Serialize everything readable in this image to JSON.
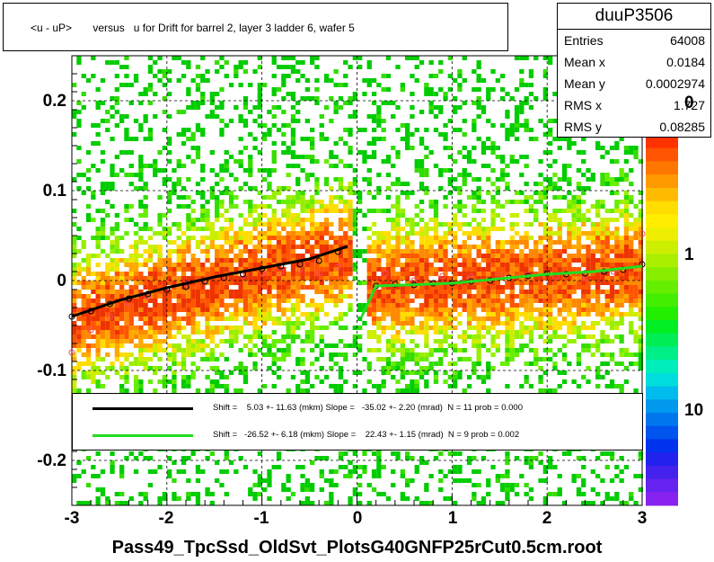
{
  "title_text": "<u - uP>       versus   u for Drift for barrel 2, layer 3 ladder 6, wafer 5",
  "stats": {
    "name": "duuP3506",
    "rows": [
      {
        "key": "Entries",
        "value": "64008"
      },
      {
        "key": "Mean x",
        "value": "0.0184"
      },
      {
        "key": "Mean y",
        "value": "0.0002974"
      },
      {
        "key": "RMS x",
        "value": "1.727"
      },
      {
        "key": "RMS y",
        "value": "0.08285"
      }
    ]
  },
  "legend": [
    {
      "color": "#000000",
      "text": "Shift =    5.03 +- 11.63 (mkm) Slope =   -35.02 +- 2.20 (mrad)  N = 11 prob = 0.000"
    },
    {
      "color": "#22dd22",
      "text": "Shift =   -26.52 +- 6.18 (mkm) Slope =    22.43 +- 1.15 (mrad)  N = 9 prob = 0.002"
    }
  ],
  "footer": "Pass49_TpcSsd_OldSvt_PlotsG40GNFP25rCut0.5cm.root",
  "chart_data": {
    "type": "heatmap",
    "xlim": [
      -3,
      3
    ],
    "ylim": [
      -0.25,
      0.25
    ],
    "x_ticks": [
      "-3",
      "-2",
      "-1",
      "0",
      "1",
      "2",
      "3"
    ],
    "y_ticks": [
      "-0.2",
      "-0.1",
      "0",
      "0.1",
      "0.2"
    ],
    "z_scale": "log",
    "z_tick_labels": [
      "1",
      "10"
    ],
    "z_tick_partial": "0",
    "grid": true,
    "series": [
      {
        "name": "fit_left",
        "color": "#000000",
        "x": [
          -3.0,
          -2.5,
          -2.0,
          -1.5,
          -1.0,
          -0.5,
          -0.1
        ],
        "y": [
          -0.04,
          -0.022,
          -0.008,
          0.004,
          0.014,
          0.024,
          0.038
        ]
      },
      {
        "name": "fit_right",
        "color": "#22dd22",
        "x": [
          0.05,
          0.2,
          0.5,
          1.0,
          1.5,
          2.0,
          2.5,
          3.0
        ],
        "y": [
          -0.04,
          -0.006,
          -0.005,
          -0.003,
          0.002,
          0.007,
          0.01,
          0.016
        ]
      }
    ],
    "profile_left": {
      "x": [
        -3.0,
        -2.8,
        -2.6,
        -2.4,
        -2.2,
        -2.0,
        -1.8,
        -1.6,
        -1.4,
        -1.2,
        -1.0,
        -0.8,
        -0.6,
        -0.4,
        -0.2
      ],
      "y": [
        -0.04,
        -0.034,
        -0.026,
        -0.02,
        -0.015,
        -0.01,
        -0.007,
        -0.001,
        0.003,
        0.007,
        0.013,
        0.016,
        0.018,
        0.022,
        0.032
      ]
    },
    "profile_right": {
      "x": [
        0.2,
        0.4,
        0.6,
        0.8,
        1.0,
        1.2,
        1.4,
        1.6,
        1.8,
        2.0,
        2.2,
        2.4,
        2.6,
        2.8,
        3.0
      ],
      "y": [
        -0.006,
        -0.004,
        -0.005,
        -0.003,
        -0.003,
        -0.001,
        0.0,
        0.003,
        0.005,
        0.008,
        0.007,
        0.008,
        0.01,
        0.012,
        0.018
      ]
    },
    "profile_red": {
      "x": [
        -3.0,
        -2.8,
        -2.6,
        -2.4,
        -2.2,
        -2.0,
        -1.8,
        -1.6,
        -1.4,
        -1.2,
        -1.0,
        -0.8,
        -0.6,
        -0.4,
        -0.2,
        0.3,
        0.6,
        0.9,
        1.2,
        1.5,
        1.8,
        2.1,
        2.4,
        2.7,
        3.0
      ],
      "y": [
        -0.08,
        -0.055,
        -0.04,
        -0.025,
        -0.018,
        -0.01,
        -0.004,
        0.0,
        0.004,
        0.006,
        0.008,
        0.01,
        0.012,
        0.008,
        0.015,
        0.008,
        0.0,
        0.005,
        0.004,
        0.006,
        0.006,
        0.004,
        0.003,
        0.01,
        0.052
      ]
    }
  }
}
